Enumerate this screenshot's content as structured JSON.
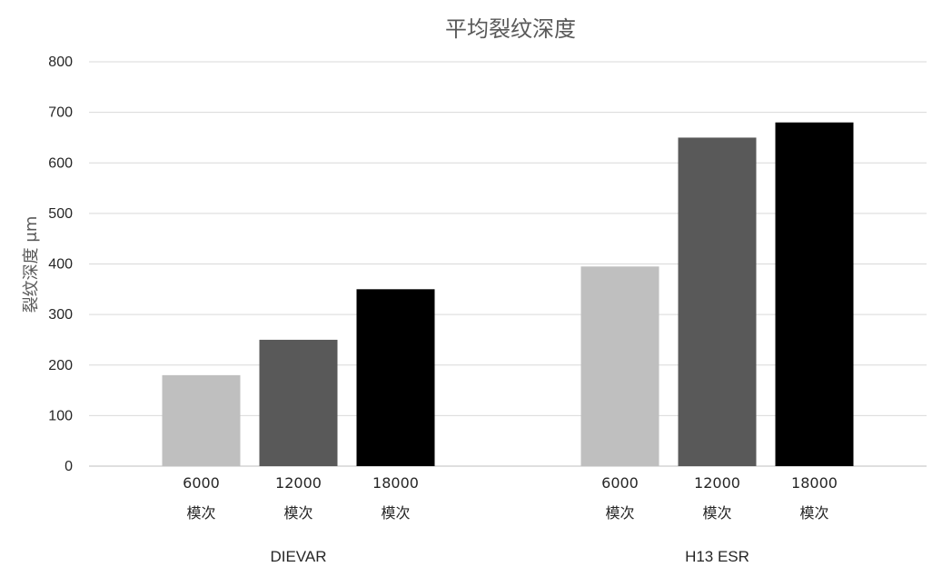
{
  "chart_data": {
    "type": "bar",
    "title": "平均裂纹深度",
    "ylabel": "裂纹深度 μm",
    "xlabel": "",
    "ylim": [
      0,
      800
    ],
    "yticks": [
      "0",
      "100",
      "200",
      "300",
      "400",
      "500",
      "600",
      "700",
      "800"
    ],
    "grid": true,
    "groups": [
      {
        "name": "DIEVAR",
        "bars": [
          {
            "count": "6000",
            "unit": "模次",
            "value": 180,
            "color": "#bfbfbf"
          },
          {
            "count": "12000",
            "unit": "模次",
            "value": 250,
            "color": "#595959"
          },
          {
            "count": "18000",
            "unit": "模次",
            "value": 350,
            "color": "#000000"
          }
        ]
      },
      {
        "name": "H13 ESR",
        "bars": [
          {
            "count": "6000",
            "unit": "模次",
            "value": 395,
            "color": "#bfbfbf"
          },
          {
            "count": "12000",
            "unit": "模次",
            "value": 650,
            "color": "#595959"
          },
          {
            "count": "18000",
            "unit": "模次",
            "value": 680,
            "color": "#000000"
          }
        ]
      }
    ]
  }
}
